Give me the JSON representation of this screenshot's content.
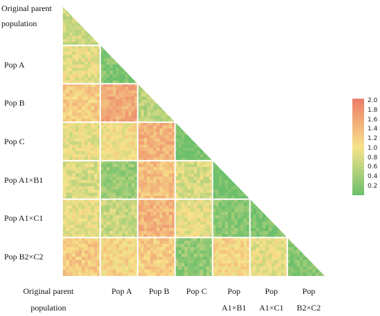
{
  "chart_data": {
    "type": "heatmap",
    "shape": "lower-triangle",
    "title": "",
    "groups": [
      {
        "label_lines": [
          "Original parent",
          "population"
        ]
      },
      {
        "label_lines": [
          "Pop A"
        ]
      },
      {
        "label_lines": [
          "Pop B"
        ]
      },
      {
        "label_lines": [
          "Pop C"
        ]
      },
      {
        "label_lines": [
          "Pop A1×B1"
        ]
      },
      {
        "label_lines": [
          "Pop A1×C1"
        ]
      },
      {
        "label_lines": [
          "Pop B2×C2"
        ]
      }
    ],
    "column_labels": [
      {
        "label_lines": [
          "Original parent",
          "population"
        ]
      },
      {
        "label_lines": [
          "Pop A"
        ]
      },
      {
        "label_lines": [
          "Pop B"
        ]
      },
      {
        "label_lines": [
          "Pop C"
        ]
      },
      {
        "label_lines": [
          "Pop",
          "A1×B1"
        ]
      },
      {
        "label_lines": [
          "Pop",
          "A1×C1"
        ]
      },
      {
        "label_lines": [
          "Pop",
          "B2×C2"
        ]
      }
    ],
    "block_mean_values": [
      [
        0.8
      ],
      [
        1.0,
        0.35
      ],
      [
        1.3,
        1.6,
        0.7
      ],
      [
        1.0,
        1.1,
        1.5,
        0.25
      ],
      [
        0.9,
        0.5,
        1.4,
        0.9,
        0.2
      ],
      [
        1.0,
        0.8,
        1.5,
        1.0,
        0.4,
        0.3
      ],
      [
        1.3,
        1.2,
        1.3,
        0.45,
        1.2,
        1.0,
        0.4
      ]
    ],
    "colorbar": {
      "min": 0.2,
      "max": 2.0,
      "ticks": [
        "2.0",
        "1.8",
        "1.6",
        "1.4",
        "1.2",
        "1.0",
        "0.8",
        "0.6",
        "0.4",
        "0.2"
      ],
      "colors": [
        "#6cbf6c",
        "#f7e28a",
        "#ec7b68"
      ]
    }
  }
}
